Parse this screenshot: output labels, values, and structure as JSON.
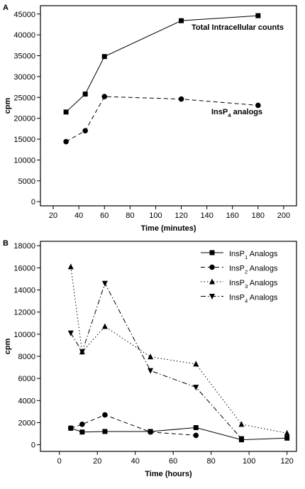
{
  "chart_data": [
    {
      "type": "line",
      "panel_label": "A",
      "xlabel": "Time (minutes)",
      "ylabel": "cpm",
      "x": [
        30,
        45,
        60,
        120,
        180
      ],
      "xlim": [
        10,
        210
      ],
      "xticks": [
        20,
        40,
        60,
        80,
        100,
        120,
        140,
        160,
        180,
        200
      ],
      "ylim": [
        -1000,
        47000
      ],
      "yticks": [
        0,
        5000,
        10000,
        15000,
        20000,
        25000,
        30000,
        35000,
        40000,
        45000
      ],
      "series": [
        {
          "label": "Total Intracellular counts",
          "color": "#000000",
          "marker": "square",
          "dash": "solid",
          "values": [
            21500,
            25800,
            34800,
            43400,
            44600
          ]
        },
        {
          "label": "InsP4 analogs",
          "color": "#000000",
          "marker": "circle",
          "dash": "dashed",
          "values": [
            14400,
            17000,
            25200,
            24600,
            23100
          ]
        }
      ]
    },
    {
      "type": "line",
      "panel_label": "B",
      "xlabel": "Time (hours)",
      "ylabel": "cpm",
      "x": [
        6,
        12,
        24,
        48,
        72,
        96,
        120
      ],
      "xlim": [
        -10,
        125
      ],
      "xticks": [
        0,
        20,
        40,
        60,
        80,
        100,
        120
      ],
      "ylim": [
        -600,
        18400
      ],
      "yticks": [
        0,
        2000,
        4000,
        6000,
        8000,
        10000,
        12000,
        14000,
        16000,
        18000
      ],
      "legend": "upper right",
      "series": [
        {
          "name": "InsP1 Analogs",
          "color": "#000000",
          "marker": "square",
          "dash": "solid",
          "values": [
            1500,
            1150,
            1200,
            1200,
            1550,
            450,
            600
          ]
        },
        {
          "name": "InsP2 Analogs",
          "color": "#000000",
          "marker": "circle",
          "dash": "dashed",
          "values": [
            1500,
            1850,
            2700,
            1150,
            850,
            null,
            null
          ]
        },
        {
          "name": "InsP3 Analogs",
          "color": "#000000",
          "marker": "triangle-up",
          "dash": "dotted",
          "values": [
            16100,
            8400,
            10700,
            7950,
            7300,
            1850,
            1050
          ]
        },
        {
          "name": "InsP4 Analogs",
          "color": "#000000",
          "marker": "triangle-down",
          "dash": "dashdot",
          "values": [
            10100,
            8400,
            14600,
            6700,
            5200,
            550,
            null
          ]
        }
      ]
    }
  ]
}
